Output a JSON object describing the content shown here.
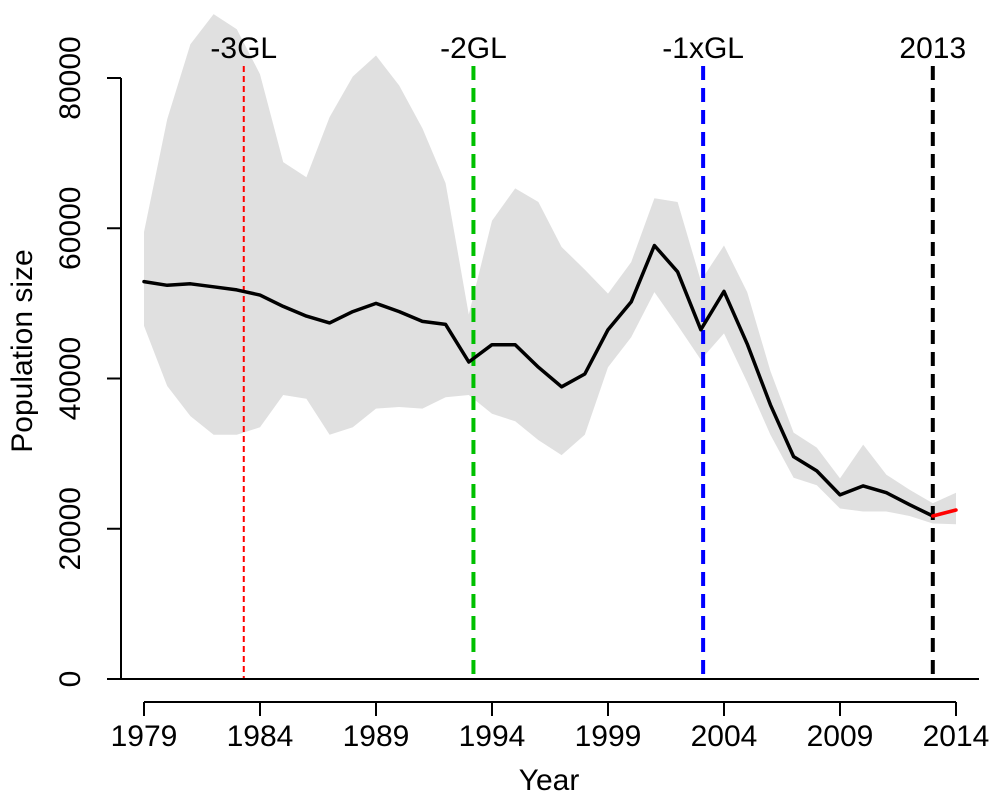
{
  "chart_data": {
    "type": "line",
    "title": "",
    "xlabel": "Year",
    "ylabel": "Population size",
    "xlim": [
      1979,
      2014
    ],
    "ylim": [
      0,
      80000
    ],
    "x_ticks": [
      1979,
      1984,
      1989,
      1994,
      1999,
      2004,
      2009,
      2014
    ],
    "y_ticks": [
      0,
      20000,
      40000,
      60000,
      80000
    ],
    "grid": false,
    "x": [
      1979,
      1980,
      1981,
      1982,
      1983,
      1984,
      1985,
      1986,
      1987,
      1988,
      1989,
      1990,
      1991,
      1992,
      1993,
      1994,
      1995,
      1996,
      1997,
      1998,
      1999,
      2000,
      2001,
      2002,
      2003,
      2004,
      2005,
      2006,
      2007,
      2008,
      2009,
      2010,
      2011,
      2012,
      2013
    ],
    "series": [
      {
        "color": "#000000",
        "values": [
          52900,
          52400,
          52600,
          52200,
          51800,
          51100,
          49600,
          48300,
          47400,
          48900,
          50000,
          48900,
          47600,
          47200,
          42200,
          44500,
          44500,
          41500,
          38900,
          40600,
          46500,
          50200,
          57700,
          54200,
          46500,
          51600,
          44600,
          36500,
          29600,
          27700,
          24500,
          25700,
          24800,
          23200,
          21700
        ]
      },
      {
        "color": "#ff0000",
        "x": [
          2013,
          2014
        ],
        "values": [
          21700,
          22500
        ]
      }
    ],
    "interval": {
      "fill": "#e0e0e0",
      "x": [
        1979,
        1980,
        1981,
        1982,
        1983,
        1984,
        1985,
        1986,
        1987,
        1988,
        1989,
        1990,
        1991,
        1992,
        1993,
        1994,
        1995,
        1996,
        1997,
        1998,
        1999,
        2000,
        2001,
        2002,
        2003,
        2004,
        2005,
        2006,
        2007,
        2008,
        2009,
        2010,
        2011,
        2012,
        2013,
        2014
      ],
      "lower": [
        47000,
        39000,
        35000,
        32500,
        32500,
        33500,
        37800,
        37300,
        32500,
        33500,
        36000,
        36200,
        36000,
        37500,
        37800,
        35300,
        34300,
        31800,
        29800,
        32500,
        41500,
        45500,
        51500,
        47100,
        42500,
        46000,
        39500,
        32500,
        26800,
        25800,
        22700,
        22300,
        22300,
        21700,
        20700,
        20600
      ],
      "upper": [
        59500,
        74500,
        84500,
        88500,
        86500,
        80500,
        68800,
        66800,
        74800,
        80200,
        83000,
        79000,
        73300,
        66000,
        48500,
        61000,
        65300,
        63500,
        57500,
        54500,
        51300,
        55500,
        64000,
        63500,
        53000,
        57700,
        51500,
        41000,
        32800,
        30800,
        26700,
        31200,
        27200,
        25200,
        23400,
        24800
      ]
    },
    "reference_lines": [
      {
        "label": "-3GL",
        "year": 1983.3,
        "color": "#ff0000",
        "style": "dashed-fine"
      },
      {
        "label": "-2GL",
        "year": 1993.2,
        "color": "#00c000",
        "style": "dashed-bold"
      },
      {
        "label": "-1xGL",
        "year": 2003.1,
        "color": "#0000ff",
        "style": "dashed-bold"
      },
      {
        "label": "2013",
        "year": 2013,
        "color": "#000000",
        "style": "dashed-bold"
      }
    ]
  }
}
